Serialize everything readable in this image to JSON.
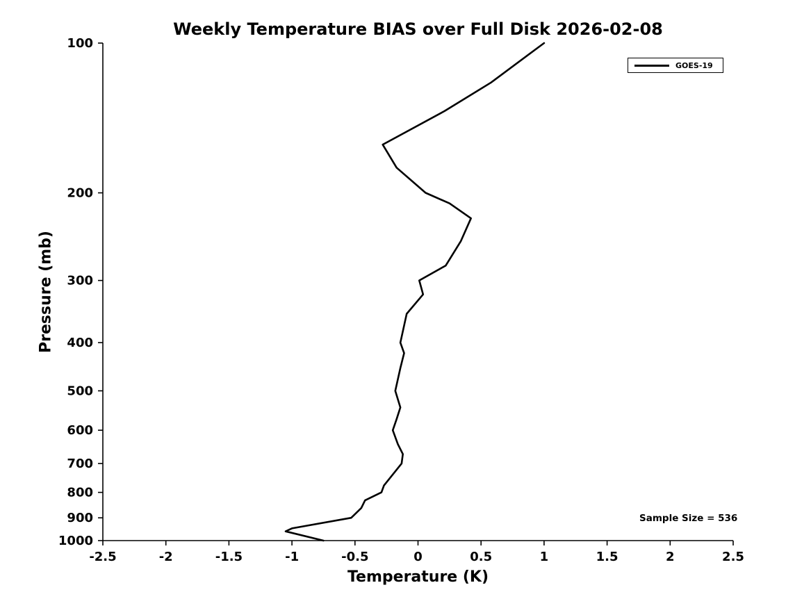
{
  "chart_data": {
    "type": "line",
    "title": "Weekly Temperature BIAS over Full Disk 2026-02-08",
    "xlabel": "Temperature (K)",
    "ylabel": "Pressure (mb)",
    "xlim": [
      -2.5,
      2.5
    ],
    "xticks": [
      -2.5,
      -2,
      -1.5,
      -1,
      -0.5,
      0,
      0.5,
      1,
      1.5,
      2,
      2.5
    ],
    "xtick_labels": [
      "-2.5",
      "-2",
      "-1.5",
      "-1",
      "-0.5",
      "0",
      "0.5",
      "1",
      "1.5",
      "2",
      "2.5"
    ],
    "yscale": "log",
    "y_axis_inverted": true,
    "ylim": [
      100,
      1000
    ],
    "yticks": [
      100,
      200,
      300,
      400,
      500,
      600,
      700,
      800,
      900,
      1000
    ],
    "ytick_labels": [
      "100",
      "200",
      "300",
      "400",
      "500",
      "600",
      "700",
      "800",
      "900",
      "1000"
    ],
    "grid": false,
    "legend": {
      "position": "top-right",
      "entries": [
        {
          "label": "GOES-19",
          "color": "#000000",
          "line_width": 3
        }
      ]
    },
    "annotation": "Sample Size = 536",
    "series": [
      {
        "name": "GOES-19",
        "color": "#000000",
        "line_width": 2.6,
        "levels_mb": [
          100,
          120,
          137,
          160,
          178,
          200,
          210,
          225,
          250,
          280,
          300,
          320,
          350,
          400,
          420,
          450,
          500,
          540,
          570,
          600,
          640,
          670,
          700,
          775,
          800,
          830,
          860,
          900,
          945,
          958,
          1000
        ],
        "bias_k": [
          1.0,
          0.58,
          0.21,
          -0.28,
          -0.17,
          0.06,
          0.25,
          0.42,
          0.34,
          0.22,
          0.01,
          0.04,
          -0.09,
          -0.14,
          -0.11,
          -0.14,
          -0.18,
          -0.14,
          -0.17,
          -0.2,
          -0.16,
          -0.12,
          -0.13,
          -0.27,
          -0.29,
          -0.42,
          -0.45,
          -0.53,
          -1.0,
          -1.05,
          -0.75
        ]
      }
    ],
    "colors": {
      "axis": "#000000",
      "text": "#000000",
      "background": "#ffffff"
    }
  }
}
